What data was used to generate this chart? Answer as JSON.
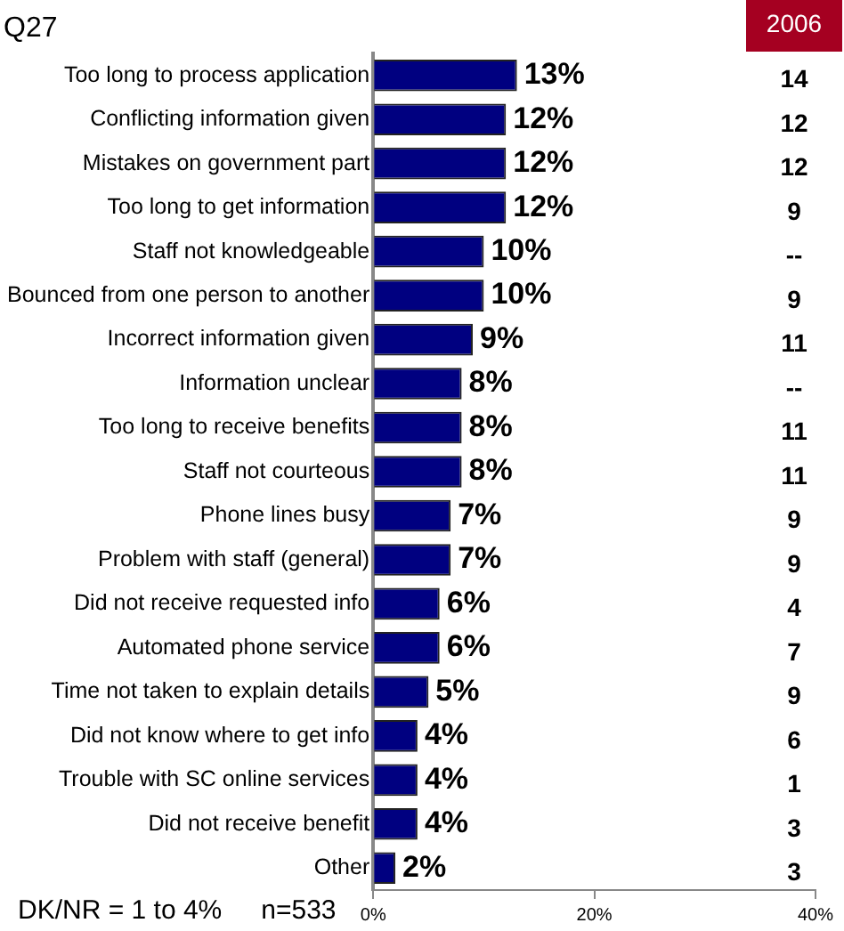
{
  "chart_data": {
    "type": "bar",
    "orientation": "horizontal",
    "categories": [
      "Too long to process application",
      "Conflicting information given",
      "Mistakes on government part",
      "Too long to get information",
      "Staff not knowledgeable",
      "Bounced from one person to another",
      "Incorrect information given",
      "Information unclear",
      "Too long to receive benefits",
      "Staff not courteous",
      "Phone lines busy",
      "Problem with staff (general)",
      "Did not receive requested info",
      "Automated phone service",
      "Time not taken to explain details",
      "Did not know where to get info",
      "Trouble with SC online services",
      "Did not receive benefit",
      "Other"
    ],
    "series": [
      {
        "color": "#000080",
        "values": [
          13,
          12,
          12,
          12,
          10,
          10,
          9,
          8,
          8,
          8,
          7,
          7,
          6,
          6,
          5,
          4,
          4,
          4,
          2
        ],
        "value_labels": [
          "13%",
          "12%",
          "12%",
          "12%",
          "10%",
          "10%",
          "9%",
          "8%",
          "8%",
          "8%",
          "7%",
          "7%",
          "6%",
          "6%",
          "5%",
          "4%",
          "4%",
          "4%",
          "2%"
        ]
      }
    ],
    "xlim": [
      0,
      40
    ],
    "xticks": [
      {
        "value": 0,
        "label": "0%"
      },
      {
        "value": 20,
        "label": "20%"
      },
      {
        "value": 40,
        "label": "40%"
      }
    ],
    "legend": false,
    "annotations": [
      "Q27",
      "DK/NR = 1 to 4%",
      "n=533",
      "2006",
      "14",
      "12",
      "12",
      "9",
      "--",
      "9",
      "11",
      "--",
      "11",
      "11",
      "9",
      "9",
      "4",
      "7",
      "9",
      "6",
      "1",
      "3",
      "3"
    ]
  }
}
